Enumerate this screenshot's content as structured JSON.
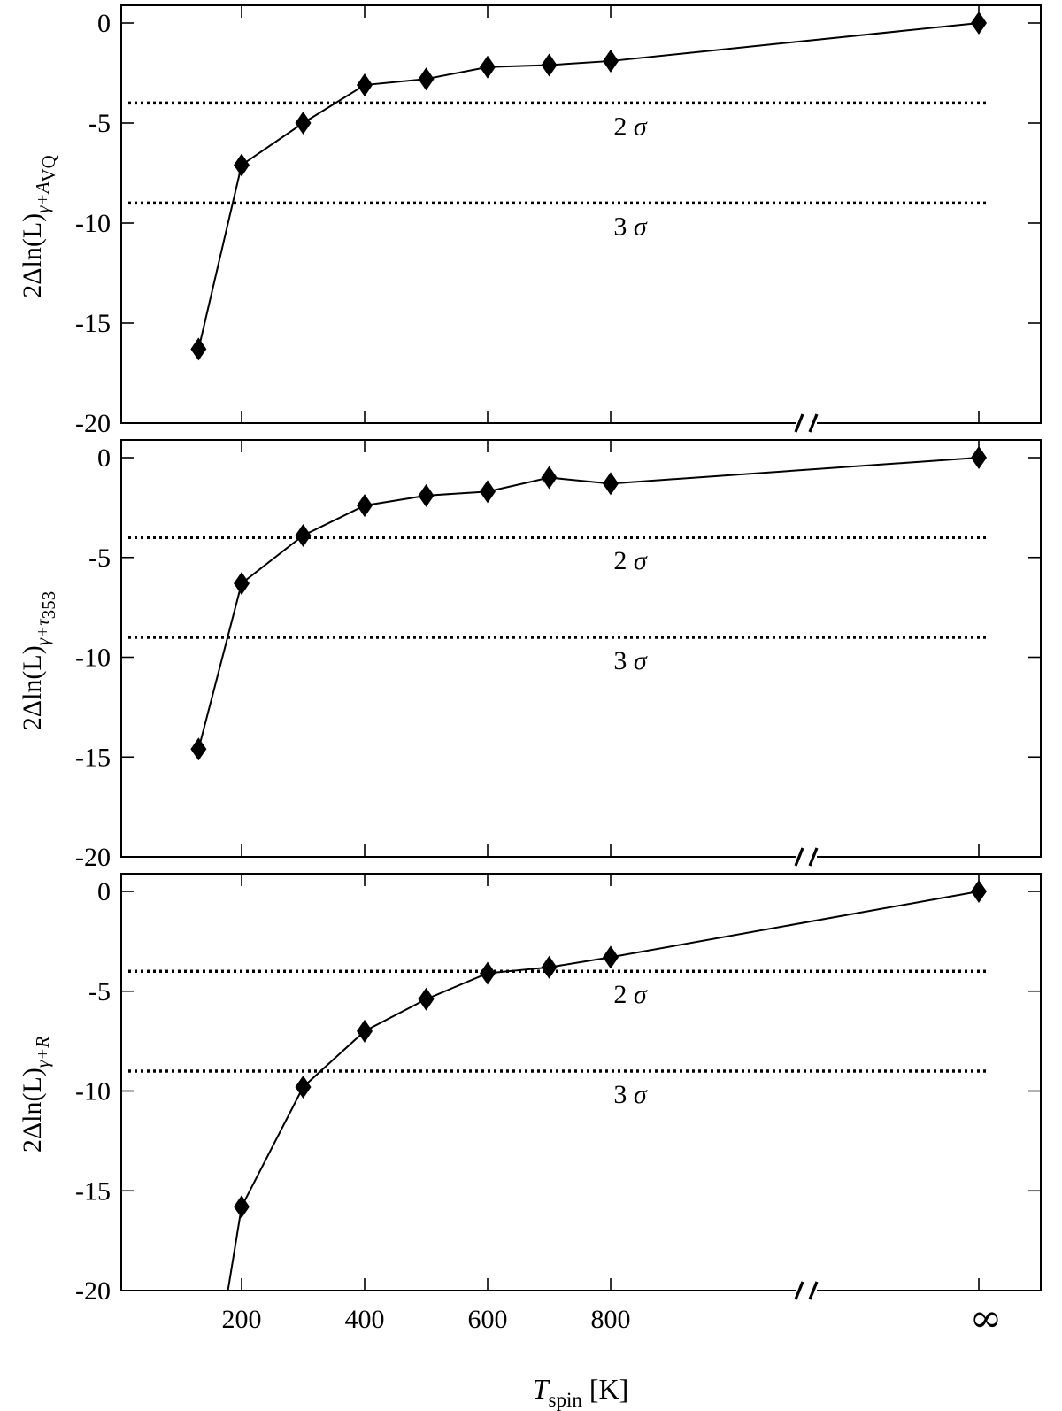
{
  "chart_data": [
    {
      "type": "line",
      "ylabel_main": "2Δln(L)",
      "ylabel_sub": "γ+A",
      "ylabel_subsub": "VQ",
      "ylim": [
        -20,
        0
      ],
      "yticks": [
        0,
        -5,
        -10,
        -15,
        -20
      ],
      "ytick_labels": [
        "0",
        "-5",
        "-10",
        "-15",
        "-20"
      ],
      "x": [
        130,
        200,
        300,
        400,
        500,
        600,
        700,
        800,
        "∞"
      ],
      "values": [
        -16.3,
        -7.1,
        -5.0,
        -3.1,
        -2.8,
        -2.2,
        -2.1,
        -1.9,
        0
      ],
      "thresholds": [
        {
          "value": -4,
          "label_num": "2",
          "label_sym": "σ"
        },
        {
          "value": -9,
          "label_num": "3",
          "label_sym": "σ"
        }
      ]
    },
    {
      "type": "line",
      "ylabel_main": "2Δln(L)",
      "ylabel_sub": "γ+τ",
      "ylabel_subsub": "353",
      "ylim": [
        -20,
        0
      ],
      "yticks": [
        0,
        -5,
        -10,
        -15,
        -20
      ],
      "ytick_labels": [
        "0",
        "-5",
        "-10",
        "-15",
        "-20"
      ],
      "x": [
        130,
        200,
        300,
        400,
        500,
        600,
        700,
        800,
        "∞"
      ],
      "values": [
        -14.6,
        -6.3,
        -3.9,
        -2.4,
        -1.9,
        -1.7,
        -1.0,
        -1.3,
        0
      ],
      "thresholds": [
        {
          "value": -4,
          "label_num": "2",
          "label_sym": "σ"
        },
        {
          "value": -9,
          "label_num": "3",
          "label_sym": "σ"
        }
      ]
    },
    {
      "type": "line",
      "ylabel_main": "2Δln(L)",
      "ylabel_sub": "γ+R",
      "ylabel_subsub": "",
      "ylim": [
        -20,
        0
      ],
      "yticks": [
        0,
        -5,
        -10,
        -15,
        -20
      ],
      "ytick_labels": [
        "0",
        "-5",
        "-10",
        "-15",
        "-20"
      ],
      "x": [
        200,
        300,
        400,
        500,
        600,
        700,
        800,
        "∞"
      ],
      "values": [
        -15.8,
        -9.8,
        -7.0,
        -5.4,
        -4.1,
        -3.8,
        -3.3,
        0
      ],
      "line_extends_below_axis": true,
      "thresholds": [
        {
          "value": -4,
          "label_num": "2",
          "label_sym": "σ"
        },
        {
          "value": -9,
          "label_num": "3",
          "label_sym": "σ"
        }
      ]
    }
  ],
  "x_axis": {
    "ticks": [
      200,
      400,
      600,
      800
    ],
    "tick_labels": [
      "200",
      "400",
      "600",
      "800"
    ],
    "infinity_label": "∞",
    "label_main": "T",
    "label_sub": "spin",
    "label_unit": "[K]",
    "axis_break": true
  }
}
